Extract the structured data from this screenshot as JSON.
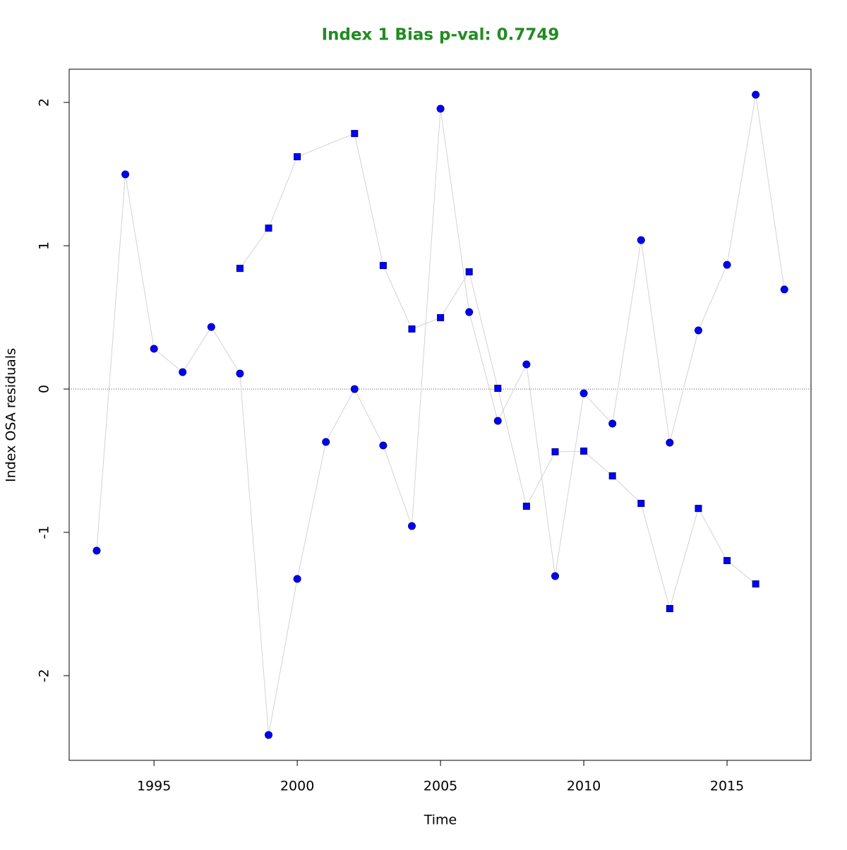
{
  "chart_data": {
    "type": "scatter",
    "title": "Index 1 Bias p-val: 0.7749",
    "xlabel": "Time",
    "ylabel": "Index OSA residuals",
    "title_color": "#228b22",
    "line_color": "#d3d3d3",
    "hline": 0,
    "series": [
      {
        "marker": "circle",
        "color": "#0000ff",
        "x": [
          1993,
          1994,
          1995,
          1996,
          1997,
          1998,
          1999,
          2000,
          2001,
          2002,
          2003,
          2004,
          2005,
          2006,
          2007,
          2008,
          2009,
          2010,
          2011,
          2012,
          2013,
          2014,
          2015,
          2016,
          2017
        ],
        "values": [
          -1.128,
          1.498,
          0.281,
          0.118,
          0.433,
          0.108,
          -2.414,
          -1.325,
          -0.369,
          0,
          -0.394,
          -0.956,
          1.956,
          0.537,
          -0.222,
          0.172,
          -1.305,
          -0.03,
          -0.241,
          1.039,
          -0.374,
          0.409,
          0.867,
          2.054,
          0.695
        ]
      },
      {
        "marker": "square",
        "color": "#0000ff",
        "x": [
          1998,
          1999,
          2000,
          2002,
          2003,
          2004,
          2005,
          2006,
          2007,
          2008,
          2009,
          2010,
          2011,
          2012,
          2013,
          2014,
          2015,
          2016
        ],
        "values": [
          0.842,
          1.123,
          1.621,
          1.783,
          0.862,
          0.419,
          0.498,
          0.818,
          0.005,
          -0.818,
          -0.438,
          -0.433,
          -0.606,
          -0.798,
          -1.532,
          -0.833,
          -1.197,
          -1.36
        ]
      }
    ],
    "xlim": [
      1992.04,
      2017.93
    ],
    "ylim": [
      -2.591,
      2.232
    ],
    "xticks": [
      1995,
      2000,
      2005,
      2010,
      2015
    ],
    "yticks": [
      -2,
      -1,
      0,
      1,
      2
    ]
  }
}
